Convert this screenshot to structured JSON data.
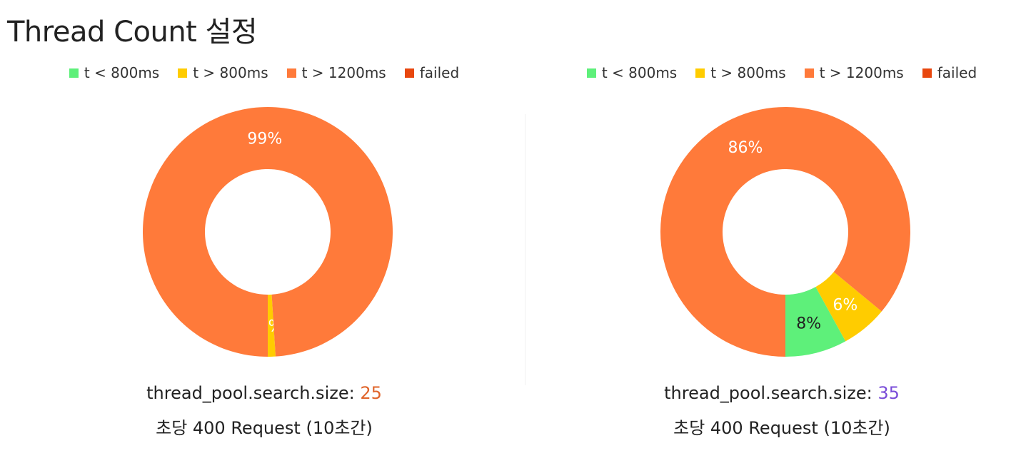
{
  "page": {
    "title": "Thread Count 설정"
  },
  "chart_data": [
    {
      "type": "pie",
      "legend": [
        {
          "label": "t < 800ms",
          "color": "#5ef07a"
        },
        {
          "label": "t > 800ms",
          "color": "#ffcc00"
        },
        {
          "label": "t > 1200ms",
          "color": "#ff7a3a"
        },
        {
          "label": "failed",
          "color": "#e8470e"
        }
      ],
      "slices": [
        {
          "label": "t < 800ms",
          "value": 0,
          "color": "#5ef07a",
          "display": ""
        },
        {
          "label": "t > 800ms",
          "value": 1,
          "color": "#ffcc00",
          "display": "1%"
        },
        {
          "label": "t > 1200ms",
          "value": 99,
          "color": "#ff7a3a",
          "display": "99%"
        },
        {
          "label": "failed",
          "value": 0,
          "color": "#e8470e",
          "display": ""
        }
      ],
      "caption": {
        "prefix": "thread_pool.search.size: ",
        "value": "25",
        "value_color": "#e0642a",
        "line2": "초당 400 Request (10초간)"
      }
    },
    {
      "type": "pie",
      "legend": [
        {
          "label": "t < 800ms",
          "color": "#5ef07a"
        },
        {
          "label": "t > 800ms",
          "color": "#ffcc00"
        },
        {
          "label": "t > 1200ms",
          "color": "#ff7a3a"
        },
        {
          "label": "failed",
          "color": "#e8470e"
        }
      ],
      "slices": [
        {
          "label": "t < 800ms",
          "value": 8,
          "color": "#5ef07a",
          "display": "8%"
        },
        {
          "label": "t > 800ms",
          "value": 6,
          "color": "#ffcc00",
          "display": "6%"
        },
        {
          "label": "t > 1200ms",
          "value": 86,
          "color": "#ff7a3a",
          "display": "86%"
        },
        {
          "label": "failed",
          "value": 0,
          "color": "#e8470e",
          "display": ""
        }
      ],
      "caption": {
        "prefix": "thread_pool.search.size: ",
        "value": "35",
        "value_color": "#7a4dd8",
        "line2": "초당 400 Request (10초간)"
      }
    }
  ]
}
